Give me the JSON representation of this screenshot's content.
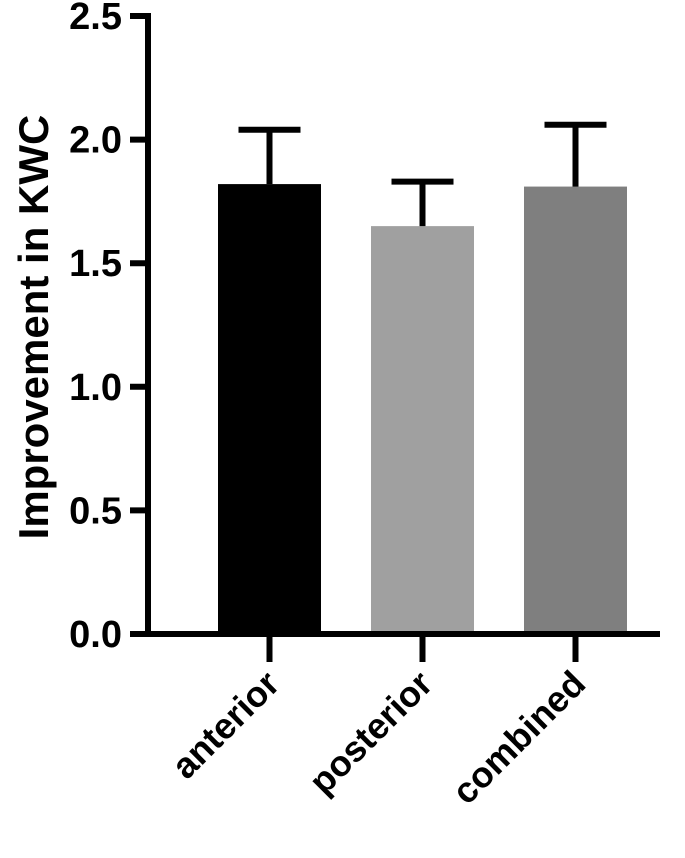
{
  "chart_data": {
    "type": "bar",
    "title": "",
    "xlabel": "",
    "ylabel": "Improvement in KWC",
    "ylim": [
      0,
      2.5
    ],
    "yticks": [
      "0.0",
      "0.5",
      "1.0",
      "1.5",
      "2.0",
      "2.5"
    ],
    "yticks_values": [
      0,
      0.5,
      1.0,
      1.5,
      2.0,
      2.5
    ],
    "categories": [
      "anterior",
      "posterior",
      "combined"
    ],
    "values": [
      1.82,
      1.65,
      1.81
    ],
    "error_upper": [
      0.22,
      0.18,
      0.25
    ],
    "bar_colors": [
      "#000000",
      "#a0a0a0",
      "#7f7f7f"
    ],
    "error_bars": "upper only",
    "grid": false,
    "legend": "none"
  }
}
